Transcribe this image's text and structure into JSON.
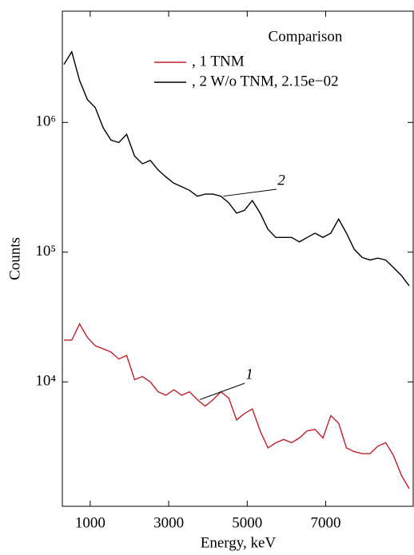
{
  "chart_data": {
    "type": "line",
    "x": [
      330,
      530,
      730,
      930,
      1130,
      1330,
      1530,
      1730,
      1930,
      2130,
      2330,
      2530,
      2730,
      2930,
      3130,
      3330,
      3530,
      3730,
      3930,
      4130,
      4330,
      4530,
      4730,
      4930,
      5130,
      5330,
      5530,
      5730,
      5930,
      6130,
      6330,
      6530,
      6730,
      6930,
      7130,
      7330,
      7530,
      7730,
      7930,
      8130,
      8330,
      8530,
      8730,
      8930,
      9130
    ],
    "series": [
      {
        "name": ", 1  TNM",
        "color": "#c0202a",
        "values": [
          21000,
          21000,
          28000,
          22000,
          19000,
          18000,
          17000,
          15000,
          16000,
          10400,
          11000,
          10000,
          8400,
          7900,
          8700,
          7900,
          8400,
          7300,
          6500,
          7300,
          8400,
          7500,
          5100,
          5700,
          6200,
          4200,
          3100,
          3400,
          3600,
          3400,
          3700,
          4200,
          4300,
          3700,
          5500,
          4800,
          3100,
          2900,
          2800,
          2800,
          3200,
          3400,
          2700,
          1900,
          1500
        ]
      },
      {
        "name": ", 2  W/o TNM, 2.15e−02",
        "color": "#000000",
        "values": [
          2800000,
          3500000,
          2100000,
          1500000,
          1300000,
          910000,
          730000,
          700000,
          810000,
          550000,
          480000,
          510000,
          430000,
          380000,
          340000,
          320000,
          300000,
          270000,
          280000,
          280000,
          270000,
          240000,
          200000,
          210000,
          250000,
          200000,
          150000,
          130000,
          130000,
          130000,
          120000,
          130000,
          140000,
          130000,
          140000,
          180000,
          140000,
          105000,
          91000,
          87000,
          90000,
          87000,
          76000,
          66000,
          55000
        ]
      }
    ],
    "xlabel": "Energy, keV",
    "ylabel": "Counts",
    "legend_title": "Comparison",
    "annotations": [
      "1",
      "2"
    ],
    "xlim": [
      290,
      9230
    ],
    "xticks": [
      1000,
      3000,
      5000,
      7000
    ],
    "ylim": [
      1100,
      7200000
    ],
    "yscale": "log",
    "yticks": [
      {
        "value": 10000,
        "label": "10⁴"
      },
      {
        "value": 100000,
        "label": "10⁵"
      },
      {
        "value": 1000000,
        "label": "10⁶"
      }
    ],
    "legend": "upper right"
  }
}
